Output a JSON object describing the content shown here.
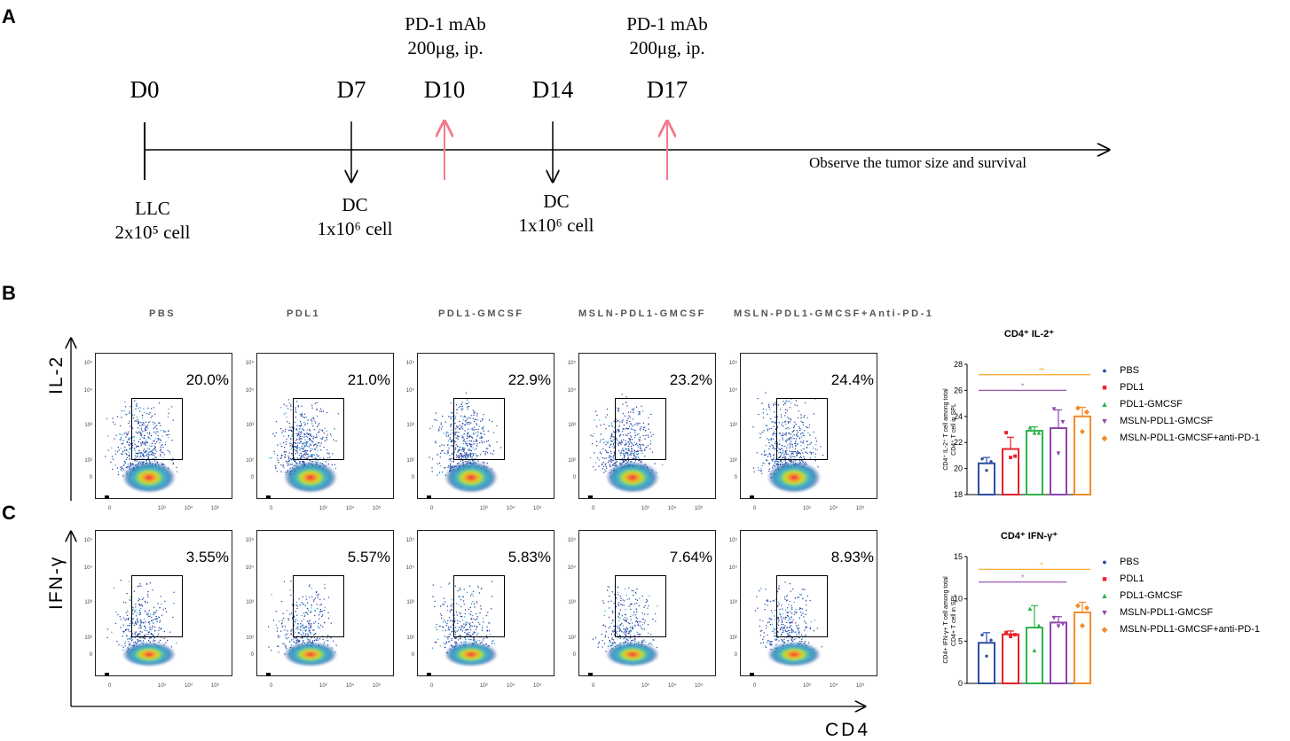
{
  "panel_letters": {
    "a": "A",
    "b": "B",
    "c": "C"
  },
  "timeline": {
    "days": [
      "D0",
      "D7",
      "D10",
      "D14",
      "D17"
    ],
    "mab_lines": [
      "PD-1 mAb",
      "200μg, ip."
    ],
    "llc_lines": [
      "LLC",
      "2x10⁵ cell"
    ],
    "dc_lines": [
      "DC",
      "1x10⁶ cell"
    ],
    "observe": "Observe the tumor size and survival",
    "colors": {
      "injection": "#f07a8c",
      "axis": "#000000"
    }
  },
  "flow": {
    "groups": [
      "PBS",
      "PDL1",
      "PDL1-GMCSF",
      "MSLN-PDL1-GMCSF",
      "MSLN-PDL1-GMCSF+Anti-PD-1"
    ],
    "il2_label": "IL-2",
    "ifng_label": "IFN-γ",
    "x_label": "CD4",
    "il2_percents": [
      "20.0%",
      "21.0%",
      "22.9%",
      "23.2%",
      "24.4%"
    ],
    "ifng_percents": [
      "3.55%",
      "5.57%",
      "5.83%",
      "7.64%",
      "8.93%"
    ],
    "y_ticks": [
      "10⁵",
      "10⁴",
      "10³",
      "10²",
      "0"
    ],
    "x_ticks": [
      "0",
      "10³",
      "10⁴",
      "10⁵"
    ]
  },
  "chart_data": [
    {
      "type": "bar",
      "title": "CD4⁺ IL-2⁺",
      "ylabel_lines": [
        "CD4⁺ IL-2⁺ T cell among total",
        "CD4⁺ T cell in SPL"
      ],
      "categories": [
        "PBS",
        "PDL1",
        "PDL1-GMCSF",
        "MSLN-PDL1-GMCSF",
        "MSLN-PDL1-GMCSF+anti-PD-1"
      ],
      "values": [
        20.4,
        21.5,
        22.9,
        23.1,
        24.0
      ],
      "errors": [
        0.45,
        0.9,
        0.3,
        1.4,
        0.7
      ],
      "points": [
        [
          20.8,
          19.9,
          20.6
        ],
        [
          22.8,
          20.9,
          21.0
        ],
        [
          23.2,
          22.8,
          22.8
        ],
        [
          24.6,
          21.2,
          23.6
        ],
        [
          24.7,
          22.9,
          24.4
        ]
      ],
      "y_ticks": [
        "28",
        "26",
        "24",
        "22",
        "20",
        "18"
      ],
      "ylim": [
        18,
        28
      ],
      "significance": [
        {
          "label": "**",
          "color": "#f5a623",
          "value": 27.2
        },
        {
          "label": "*",
          "color": "#9b59b6",
          "value": 26.0
        }
      ]
    },
    {
      "type": "bar",
      "title": "CD4⁺ IFN-γ⁺",
      "ylabel_lines": [
        "CD4+ IFN-γ+ T cell among total",
        "CD4+ T cell in SPL"
      ],
      "categories": [
        "PBS",
        "PDL1",
        "PDL1-GMCSF",
        "MSLN-PDL1-GMCSF",
        "MSLN-PDL1-GMCSF+anti-PD-1"
      ],
      "values": [
        4.8,
        5.8,
        6.6,
        7.2,
        8.4
      ],
      "errors": [
        1.2,
        0.4,
        2.6,
        0.7,
        1.2
      ],
      "points": [
        [
          5.8,
          3.3,
          5.2
        ],
        [
          6.1,
          5.6,
          5.8
        ],
        [
          8.9,
          4.0,
          6.9
        ],
        [
          7.8,
          6.8,
          7.1
        ],
        [
          9.3,
          6.9,
          9.0
        ]
      ],
      "y_ticks": [
        "15",
        "10",
        "5",
        "0"
      ],
      "ylim": [
        0,
        15
      ],
      "significance": [
        {
          "label": "*",
          "color": "#f5a623",
          "value": 13.5
        },
        {
          "label": "*",
          "color": "#9b59b6",
          "value": 12.0
        }
      ]
    }
  ],
  "legend": {
    "entries": [
      "PBS",
      "PDL1",
      "PDL1-GMCSF",
      "MSLN-PDL1-GMCSF",
      "MSLN-PDL1-GMCSF+anti-PD-1"
    ],
    "markers": [
      "●",
      "■",
      "▲",
      "▼",
      "◆"
    ],
    "colors": [
      "#2c4ea3",
      "#e8202a",
      "#2bb34a",
      "#8e44ad",
      "#f28c28"
    ]
  }
}
